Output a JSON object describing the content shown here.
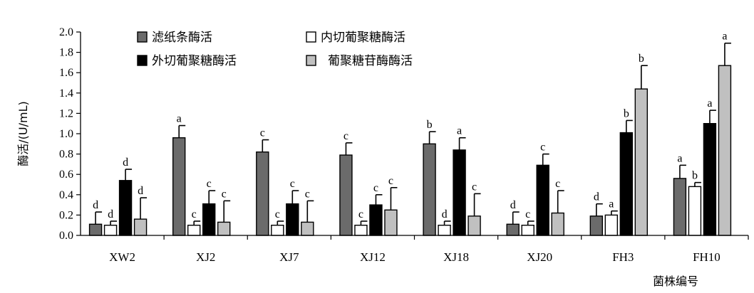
{
  "chart_data": {
    "type": "bar",
    "title": "",
    "xlabel": "菌株编号",
    "ylabel": "酶活/(U/mL)",
    "ylim": [
      0,
      2.0
    ],
    "yticks": [
      "0.0",
      "0.2",
      "0.4",
      "0.6",
      "0.8",
      "1.0",
      "1.2",
      "1.4",
      "1.6",
      "1.8",
      "2.0"
    ],
    "categories": [
      "XW2",
      "XJ2",
      "XJ7",
      "XJ12",
      "XJ18",
      "XJ20",
      "FH3",
      "FH10"
    ],
    "legend_position": "top",
    "grid": false,
    "series": [
      {
        "name": "滤纸条酶活",
        "color": "#6b6b6b",
        "values": [
          0.11,
          0.96,
          0.82,
          0.79,
          0.9,
          0.11,
          0.19,
          0.56
        ],
        "errors": [
          0.12,
          0.12,
          0.12,
          0.12,
          0.12,
          0.12,
          0.12,
          0.13
        ],
        "labels": [
          "d",
          "a",
          "c",
          "c",
          "b",
          "d",
          "d",
          "a"
        ]
      },
      {
        "name": "内切葡聚糖酶活",
        "color": "#ffffff",
        "values": [
          0.1,
          0.1,
          0.1,
          0.1,
          0.1,
          0.1,
          0.2,
          0.48
        ],
        "errors": [
          0.04,
          0.04,
          0.04,
          0.04,
          0.04,
          0.04,
          0.04,
          0.04
        ],
        "labels": [
          "d",
          "c",
          "c",
          "c",
          "d",
          "c",
          "a",
          "b"
        ]
      },
      {
        "name": "外切葡聚糖酶活",
        "color": "#000000",
        "values": [
          0.54,
          0.31,
          0.31,
          0.3,
          0.84,
          0.69,
          1.01,
          1.1
        ],
        "errors": [
          0.11,
          0.13,
          0.13,
          0.1,
          0.12,
          0.11,
          0.12,
          0.13
        ],
        "labels": [
          "d",
          "c",
          "c",
          "c",
          "a",
          "c",
          "b",
          "a"
        ]
      },
      {
        "name": "葡聚糖苷酶酶活",
        "color": "#c0c0c0",
        "values": [
          0.16,
          0.13,
          0.13,
          0.25,
          0.19,
          0.22,
          1.44,
          1.67
        ],
        "errors": [
          0.21,
          0.21,
          0.21,
          0.22,
          0.22,
          0.22,
          0.23,
          0.22
        ],
        "labels": [
          "d",
          "c",
          "c",
          "c",
          "c",
          "c",
          "b",
          "a"
        ]
      }
    ]
  }
}
